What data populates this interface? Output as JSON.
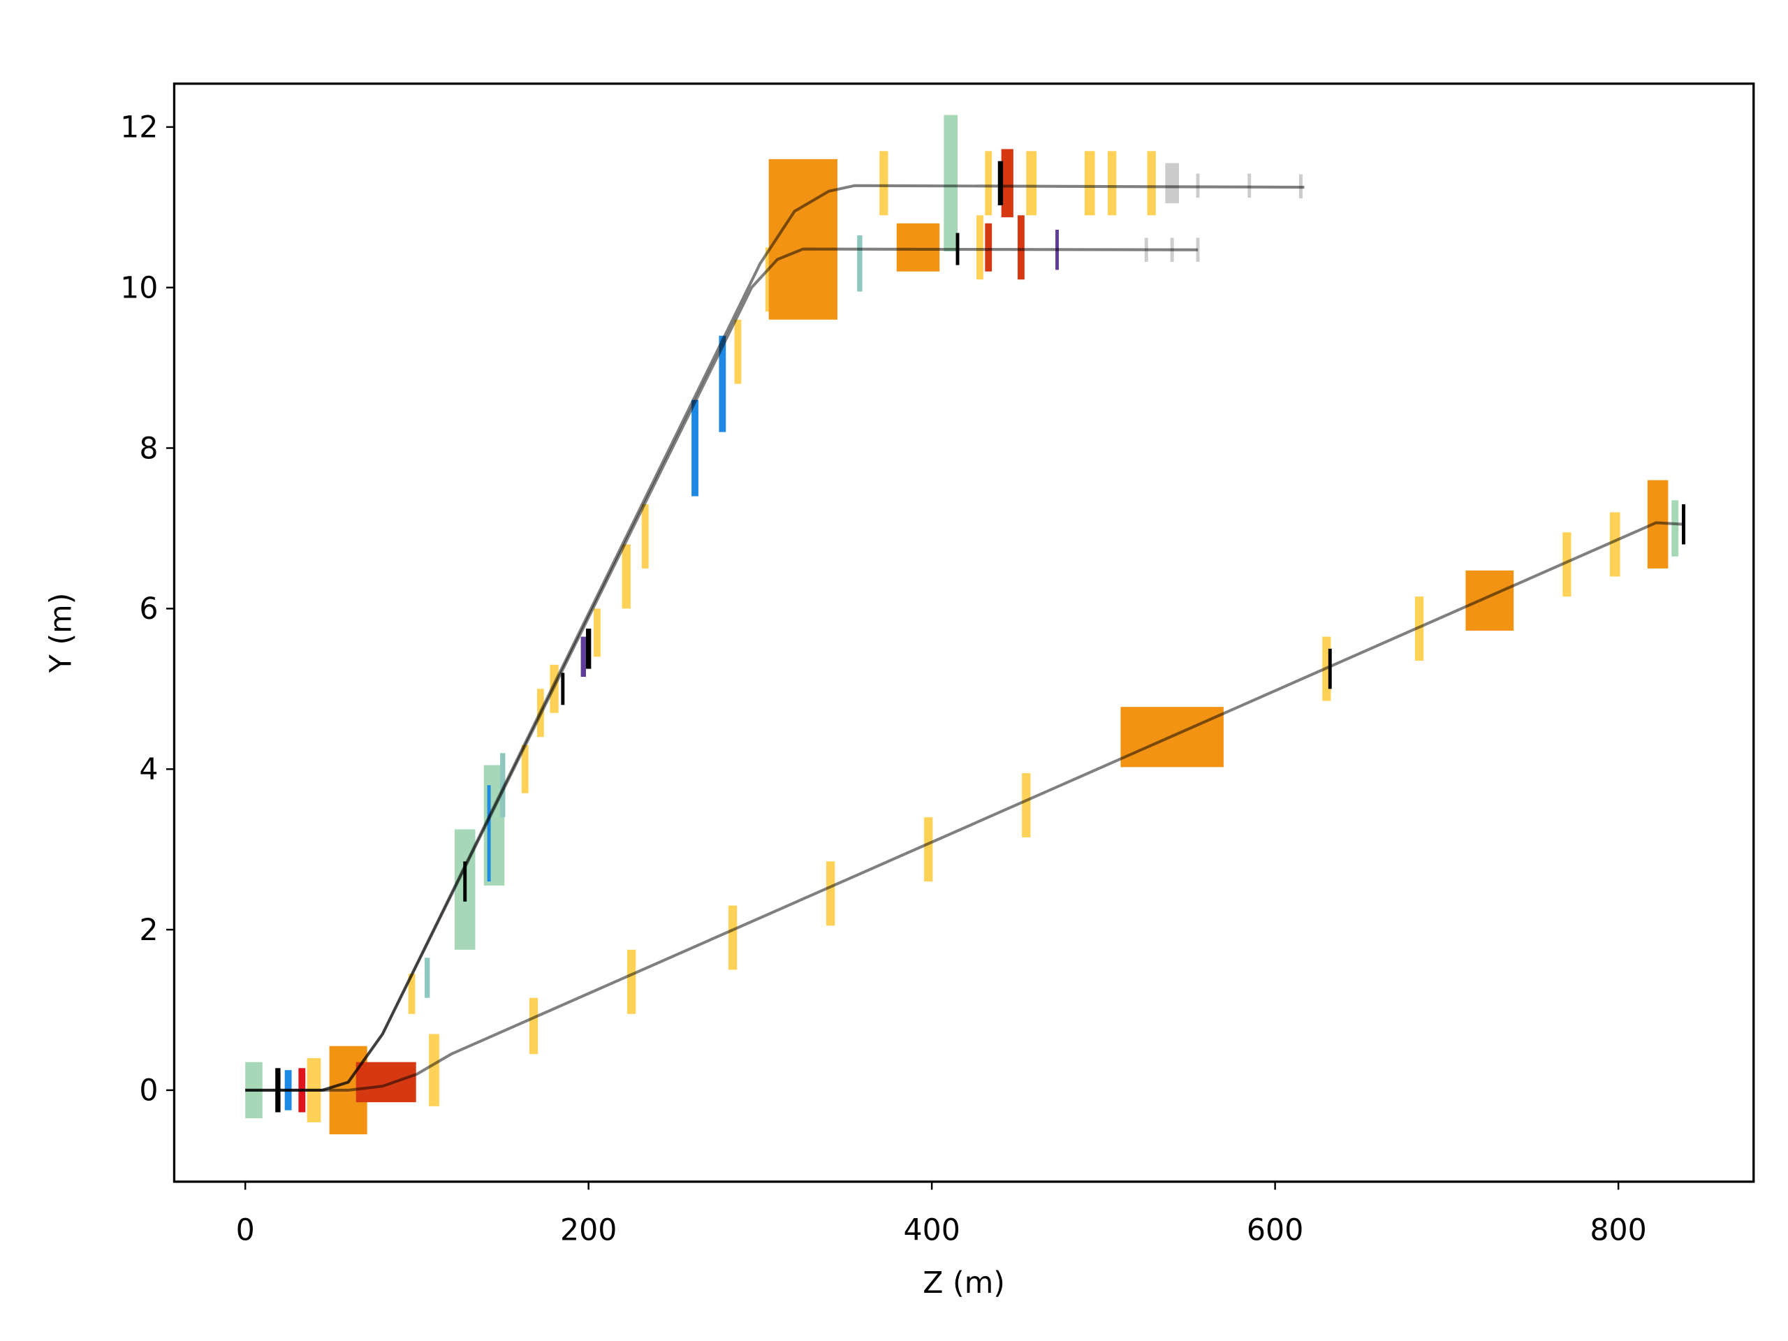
{
  "chart_data": {
    "type": "line",
    "xlabel": "Z (m)",
    "ylabel": "Y (m)",
    "xlim": [
      -41.4,
      878.8
    ],
    "ylim": [
      -1.14,
      12.54
    ],
    "xticks": [
      0,
      200,
      400,
      600,
      800
    ],
    "yticks": [
      0,
      2,
      4,
      6,
      8,
      10,
      12
    ],
    "series": [
      {
        "color": "#000000",
        "x": [
          0,
          45,
          60,
          80,
          300,
          320,
          340,
          355,
          617
        ],
        "y": [
          0,
          0,
          0.1,
          0.7,
          10.3,
          10.95,
          11.2,
          11.27,
          11.25
        ]
      },
      {
        "color": "#000000",
        "x": [
          0,
          45,
          60,
          80,
          295,
          310,
          325,
          555
        ],
        "y": [
          0,
          0,
          0.1,
          0.7,
          10.0,
          10.35,
          10.48,
          10.47
        ]
      },
      {
        "color": "#000000",
        "x": [
          0,
          60,
          80,
          100,
          120,
          822,
          838
        ],
        "y": [
          0,
          0,
          0.05,
          0.2,
          0.45,
          7.07,
          7.05
        ]
      }
    ],
    "elements": [
      {
        "z": 5,
        "y": 0,
        "length": 10,
        "height": 0.7,
        "color": "#a6d8b8"
      },
      {
        "z": 40,
        "y": 0,
        "length": 8,
        "height": 0.8,
        "color": "#ffd257"
      },
      {
        "z": 60,
        "y": 0,
        "length": 22,
        "height": 1.1,
        "color": "#f39313"
      },
      {
        "z": 82,
        "y": 0.1,
        "length": 35,
        "height": 0.5,
        "color": "#d63912"
      },
      {
        "z": 19,
        "y": 0,
        "length": 3,
        "height": 0.55,
        "color": "#000000"
      },
      {
        "z": 25,
        "y": 0,
        "length": 4,
        "height": 0.5,
        "color": "#1e88e5"
      },
      {
        "z": 33,
        "y": 0,
        "length": 4,
        "height": 0.55,
        "color": "#e0151b"
      },
      {
        "z": 110,
        "y": 0.25,
        "length": 6,
        "height": 0.9,
        "color": "#ffd257"
      },
      {
        "z": 97,
        "y": 1.2,
        "length": 4,
        "height": 0.5,
        "color": "#ffd257"
      },
      {
        "z": 106,
        "y": 1.4,
        "length": 3,
        "height": 0.5,
        "color": "#8ec6c0"
      },
      {
        "z": 128,
        "y": 2.5,
        "length": 12,
        "height": 1.5,
        "color": "#a6d8b8"
      },
      {
        "z": 145,
        "y": 3.3,
        "length": 12,
        "height": 1.5,
        "color": "#a6d8b8"
      },
      {
        "z": 142,
        "y": 3.2,
        "length": 2,
        "height": 1.2,
        "color": "#1e88e5"
      },
      {
        "z": 150,
        "y": 3.8,
        "length": 3,
        "height": 0.8,
        "color": "#8ec6c0"
      },
      {
        "z": 163,
        "y": 4.0,
        "length": 4,
        "height": 0.6,
        "color": "#ffd257"
      },
      {
        "z": 172,
        "y": 4.7,
        "length": 4,
        "height": 0.6,
        "color": "#ffd257"
      },
      {
        "z": 180,
        "y": 5.0,
        "length": 5,
        "height": 0.6,
        "color": "#ffd257"
      },
      {
        "z": 205,
        "y": 5.7,
        "length": 4,
        "height": 0.6,
        "color": "#ffd257"
      },
      {
        "z": 222,
        "y": 6.4,
        "length": 5,
        "height": 0.8,
        "color": "#ffd257"
      },
      {
        "z": 233,
        "y": 6.9,
        "length": 4,
        "height": 0.8,
        "color": "#ffd257"
      },
      {
        "z": 262,
        "y": 8.0,
        "length": 4,
        "height": 1.2,
        "color": "#1e88e5"
      },
      {
        "z": 278,
        "y": 8.8,
        "length": 4,
        "height": 1.2,
        "color": "#1e88e5"
      },
      {
        "z": 287,
        "y": 9.2,
        "length": 4,
        "height": 0.8,
        "color": "#ffd257"
      },
      {
        "z": 305,
        "y": 10.1,
        "length": 4,
        "height": 0.8,
        "color": "#ffd257"
      },
      {
        "z": 325,
        "y": 10.6,
        "length": 40,
        "height": 2.0,
        "color": "#f39313"
      },
      {
        "z": 392,
        "y": 10.5,
        "length": 25,
        "height": 0.6,
        "color": "#f39313"
      },
      {
        "z": 358,
        "y": 10.3,
        "length": 3,
        "height": 0.7,
        "color": "#8ec6c0"
      },
      {
        "z": 372,
        "y": 11.3,
        "length": 5,
        "height": 0.8,
        "color": "#ffd257"
      },
      {
        "z": 411,
        "y": 11.3,
        "length": 8,
        "height": 1.7,
        "color": "#a6d8b8"
      },
      {
        "z": 428,
        "y": 10.5,
        "length": 4,
        "height": 0.8,
        "color": "#ffd257"
      },
      {
        "z": 433,
        "y": 11.3,
        "length": 4,
        "height": 0.8,
        "color": "#ffd257"
      },
      {
        "z": 433,
        "y": 10.5,
        "length": 4,
        "height": 0.6,
        "color": "#d63912"
      },
      {
        "z": 444,
        "y": 11.3,
        "length": 7,
        "height": 0.85,
        "color": "#d63912"
      },
      {
        "z": 452,
        "y": 10.5,
        "length": 4,
        "height": 0.8,
        "color": "#d63912"
      },
      {
        "z": 458,
        "y": 11.3,
        "length": 6,
        "height": 0.8,
        "color": "#ffd257"
      },
      {
        "z": 492,
        "y": 11.3,
        "length": 6,
        "height": 0.8,
        "color": "#ffd257"
      },
      {
        "z": 505,
        "y": 11.3,
        "length": 5,
        "height": 0.8,
        "color": "#ffd257"
      },
      {
        "z": 528,
        "y": 11.3,
        "length": 5,
        "height": 0.8,
        "color": "#ffd257"
      },
      {
        "z": 540,
        "y": 11.3,
        "length": 8,
        "height": 0.5,
        "color": "#cccccc"
      },
      {
        "z": 555,
        "y": 11.27,
        "length": 2,
        "height": 0.3,
        "color": "#cccccc"
      },
      {
        "z": 585,
        "y": 11.27,
        "length": 2,
        "height": 0.3,
        "color": "#cccccc"
      },
      {
        "z": 615,
        "y": 11.26,
        "length": 2,
        "height": 0.3,
        "color": "#cccccc"
      },
      {
        "z": 525,
        "y": 10.47,
        "length": 2,
        "height": 0.3,
        "color": "#cccccc"
      },
      {
        "z": 540,
        "y": 10.47,
        "length": 2,
        "height": 0.3,
        "color": "#cccccc"
      },
      {
        "z": 555,
        "y": 10.47,
        "length": 2,
        "height": 0.3,
        "color": "#cccccc"
      },
      {
        "z": 128,
        "y": 2.6,
        "length": 2,
        "height": 0.5,
        "color": "#000000"
      },
      {
        "z": 185,
        "y": 5.0,
        "length": 2,
        "height": 0.4,
        "color": "#000000"
      },
      {
        "z": 200,
        "y": 5.5,
        "length": 3,
        "height": 0.5,
        "color": "#000000"
      },
      {
        "z": 415,
        "y": 10.48,
        "length": 2,
        "height": 0.4,
        "color": "#000000"
      },
      {
        "z": 440,
        "y": 11.3,
        "length": 3,
        "height": 0.55,
        "color": "#000000"
      },
      {
        "z": 197,
        "y": 5.4,
        "length": 3,
        "height": 0.5,
        "color": "#5e3c99"
      },
      {
        "z": 473,
        "y": 10.47,
        "length": 2,
        "height": 0.5,
        "color": "#5e3c99"
      },
      {
        "z": 168,
        "y": 0.8,
        "length": 5,
        "height": 0.7,
        "color": "#ffd257"
      },
      {
        "z": 225,
        "y": 1.35,
        "length": 5,
        "height": 0.8,
        "color": "#ffd257"
      },
      {
        "z": 284,
        "y": 1.9,
        "length": 5,
        "height": 0.8,
        "color": "#ffd257"
      },
      {
        "z": 341,
        "y": 2.45,
        "length": 5,
        "height": 0.8,
        "color": "#ffd257"
      },
      {
        "z": 398,
        "y": 3.0,
        "length": 5,
        "height": 0.8,
        "color": "#ffd257"
      },
      {
        "z": 455,
        "y": 3.55,
        "length": 5,
        "height": 0.8,
        "color": "#ffd257"
      },
      {
        "z": 540,
        "y": 4.4,
        "length": 60,
        "height": 0.75,
        "color": "#f39313"
      },
      {
        "z": 630,
        "y": 5.25,
        "length": 5,
        "height": 0.8,
        "color": "#ffd257"
      },
      {
        "z": 632,
        "y": 5.25,
        "length": 2,
        "height": 0.5,
        "color": "#000000"
      },
      {
        "z": 684,
        "y": 5.75,
        "length": 5,
        "height": 0.8,
        "color": "#ffd257"
      },
      {
        "z": 725,
        "y": 6.1,
        "length": 28,
        "height": 0.75,
        "color": "#f39313"
      },
      {
        "z": 770,
        "y": 6.55,
        "length": 5,
        "height": 0.8,
        "color": "#ffd257"
      },
      {
        "z": 798,
        "y": 6.8,
        "length": 6,
        "height": 0.8,
        "color": "#ffd257"
      },
      {
        "z": 823,
        "y": 7.05,
        "length": 12,
        "height": 1.1,
        "color": "#f39313"
      },
      {
        "z": 833,
        "y": 7.0,
        "length": 4,
        "height": 0.7,
        "color": "#a6d8b8"
      },
      {
        "z": 838,
        "y": 7.05,
        "length": 2,
        "height": 0.5,
        "color": "#000000"
      }
    ]
  }
}
